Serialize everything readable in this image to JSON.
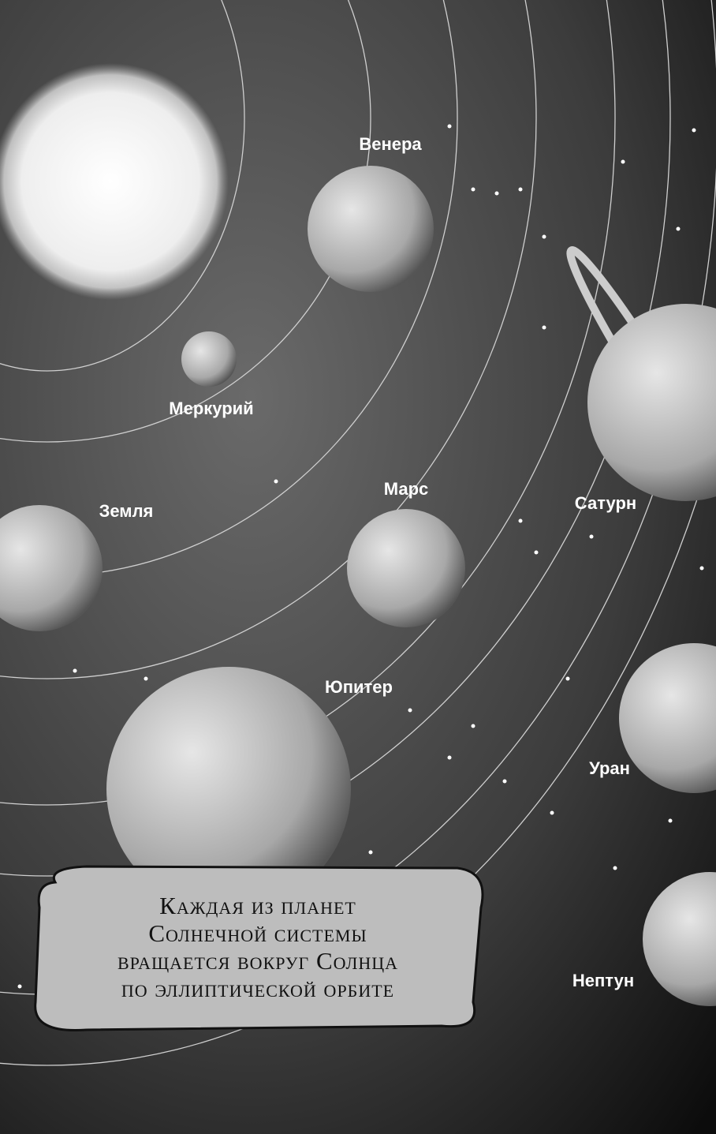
{
  "planets": [
    {
      "label": "Венера"
    },
    {
      "label": "Меркурий"
    },
    {
      "label": "Земля"
    },
    {
      "label": "Марс"
    },
    {
      "label": "Сатурн"
    },
    {
      "label": "Юпитер"
    },
    {
      "label": "Уран"
    },
    {
      "label": "Нептун"
    }
  ],
  "caption": {
    "lines": [
      "Каждая из планет",
      "Солнечной системы",
      "вращается вокруг Солнца",
      "по эллиптической орбите"
    ]
  }
}
